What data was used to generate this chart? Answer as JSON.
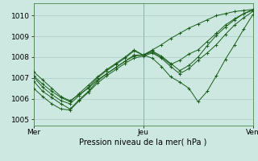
{
  "bg_color": "#cce8e0",
  "grid_color": "#aacccc",
  "line_color": "#1a5e1a",
  "title": "Pression niveau de la mer( hPa )",
  "ylabel_ticks": [
    1005,
    1006,
    1007,
    1008,
    1009,
    1010
  ],
  "ylim": [
    1004.7,
    1010.6
  ],
  "xlim": [
    0,
    48
  ],
  "xtick_positions": [
    0,
    24,
    48
  ],
  "xtick_labels": [
    "Mer",
    "Jeu",
    "Ven"
  ],
  "series": [
    [
      0,
      1007.3,
      2,
      1006.9,
      4,
      1006.5,
      6,
      1006.1,
      8,
      1005.9,
      10,
      1006.2,
      12,
      1006.5,
      14,
      1006.9,
      16,
      1007.2,
      18,
      1007.5,
      20,
      1007.8,
      22,
      1008.05,
      24,
      1008.1,
      26,
      1008.35,
      28,
      1008.6,
      30,
      1008.9,
      32,
      1009.15,
      34,
      1009.4,
      36,
      1009.6,
      38,
      1009.8,
      40,
      1010.0,
      42,
      1010.1,
      44,
      1010.2,
      46,
      1010.25,
      48,
      1010.3
    ],
    [
      0,
      1006.5,
      2,
      1006.1,
      4,
      1005.75,
      6,
      1005.5,
      8,
      1005.45,
      10,
      1005.9,
      12,
      1006.3,
      14,
      1006.75,
      16,
      1007.1,
      18,
      1007.4,
      20,
      1007.7,
      22,
      1007.95,
      24,
      1008.05,
      26,
      1008.2,
      28,
      1007.95,
      30,
      1007.55,
      32,
      1007.2,
      34,
      1007.45,
      36,
      1007.85,
      38,
      1008.2,
      40,
      1008.6,
      42,
      1009.1,
      44,
      1009.55,
      46,
      1009.9,
      48,
      1010.2
    ],
    [
      0,
      1007.05,
      2,
      1006.55,
      4,
      1006.2,
      6,
      1005.9,
      8,
      1005.75,
      10,
      1006.15,
      12,
      1006.55,
      14,
      1007.0,
      16,
      1007.35,
      18,
      1007.65,
      20,
      1007.95,
      22,
      1008.3,
      24,
      1008.1,
      26,
      1007.95,
      28,
      1007.55,
      30,
      1007.05,
      32,
      1006.8,
      34,
      1006.5,
      36,
      1005.85,
      38,
      1006.35,
      40,
      1007.1,
      42,
      1007.9,
      44,
      1008.6,
      46,
      1009.35,
      48,
      1010.05
    ],
    [
      0,
      1006.85,
      2,
      1006.35,
      4,
      1006.05,
      6,
      1005.75,
      8,
      1005.5,
      10,
      1005.95,
      12,
      1006.35,
      14,
      1006.85,
      16,
      1007.2,
      18,
      1007.5,
      20,
      1007.8,
      22,
      1008.1,
      24,
      1008.1,
      26,
      1008.25,
      28,
      1008.0,
      30,
      1007.65,
      32,
      1007.85,
      34,
      1008.15,
      36,
      1008.35,
      38,
      1008.75,
      40,
      1009.15,
      42,
      1009.55,
      44,
      1009.85,
      46,
      1010.1,
      48,
      1010.3
    ],
    [
      0,
      1007.1,
      2,
      1006.7,
      4,
      1006.35,
      6,
      1006.05,
      8,
      1005.85,
      10,
      1006.25,
      12,
      1006.65,
      14,
      1007.05,
      16,
      1007.4,
      18,
      1007.7,
      20,
      1008.0,
      22,
      1008.35,
      24,
      1008.1,
      26,
      1008.3,
      28,
      1008.05,
      30,
      1007.7,
      32,
      1007.35,
      34,
      1007.6,
      36,
      1008.0,
      38,
      1008.55,
      40,
      1009.05,
      42,
      1009.45,
      44,
      1009.8,
      46,
      1010.1,
      48,
      1010.25
    ]
  ]
}
